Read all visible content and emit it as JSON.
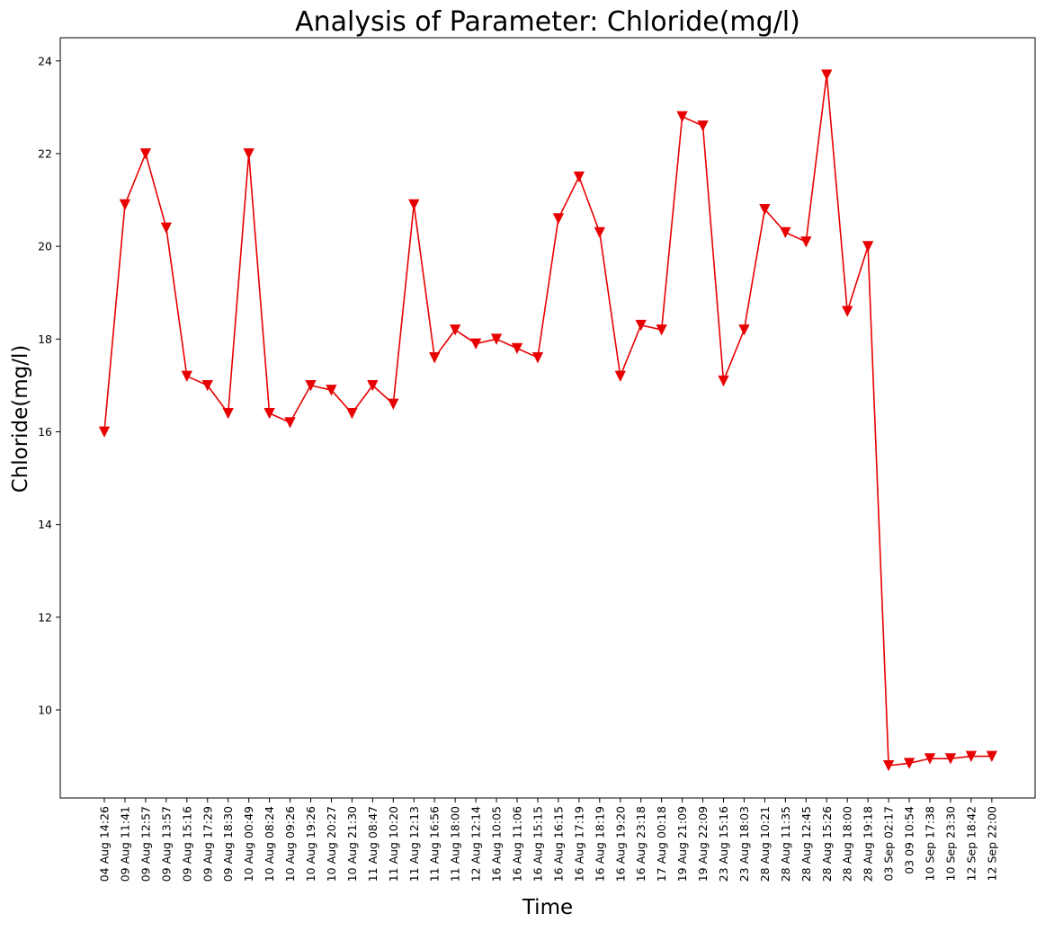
{
  "chart_data": {
    "type": "line",
    "title": "Analysis of Parameter: Chloride(mg/l)",
    "xlabel": "Time",
    "ylabel": "Chloride(mg/l)",
    "ylim": [
      8.1,
      24.5
    ],
    "yticks": [
      10,
      12,
      14,
      16,
      18,
      20,
      22,
      24
    ],
    "grid": false,
    "legend": "none",
    "categories": [
      "04 Aug 14:26",
      "09 Aug 11:41",
      "09 Aug 12:57",
      "09 Aug 13:57",
      "09 Aug 15:16",
      "09 Aug 17:29",
      "09 Aug 18:30",
      "10 Aug 00:49",
      "10 Aug 08:24",
      "10 Aug 09:26",
      "10 Aug 19:26",
      "10 Aug 20:27",
      "10 Aug 21:30",
      "11 Aug 08:47",
      "11 Aug 10:20",
      "11 Aug 12:13",
      "11 Aug 16:56",
      "11 Aug 18:00",
      "12 Aug 12:14",
      "16 Aug 10:05",
      "16 Aug 11:06",
      "16 Aug 15:15",
      "16 Aug 16:15",
      "16 Aug 17:19",
      "16 Aug 18:19",
      "16 Aug 19:20",
      "16 Aug 23:18",
      "17 Aug 00:18",
      "19 Aug 21:09",
      "19 Aug 22:09",
      "23 Aug 15:16",
      "23 Aug 18:03",
      "28 Aug 10:21",
      "28 Aug 11:35",
      "28 Aug 12:45",
      "28 Aug 15:26",
      "28 Aug 18:00",
      "28 Aug 19:18",
      "03 Sep 02:17",
      "03 09 10:54",
      "10 Sep 17:38",
      "10 Sep 23:30",
      "12 Sep 18:42",
      "12 Sep 22:00"
    ],
    "series": [
      {
        "values": [
          16.0,
          20.9,
          22.0,
          20.4,
          17.2,
          17.0,
          16.4,
          22.0,
          16.4,
          16.2,
          17.0,
          16.9,
          16.4,
          17.0,
          16.6,
          20.9,
          17.6,
          18.2,
          17.9,
          18.0,
          17.8,
          17.6,
          20.6,
          21.5,
          20.3,
          17.2,
          18.3,
          18.2,
          22.8,
          22.6,
          17.1,
          18.2,
          20.8,
          20.3,
          20.1,
          23.7,
          18.6,
          20.0,
          8.8,
          8.85,
          8.95,
          8.95,
          9.0,
          9.0
        ],
        "color": "#e80000",
        "marker": "triangle-down"
      }
    ]
  }
}
